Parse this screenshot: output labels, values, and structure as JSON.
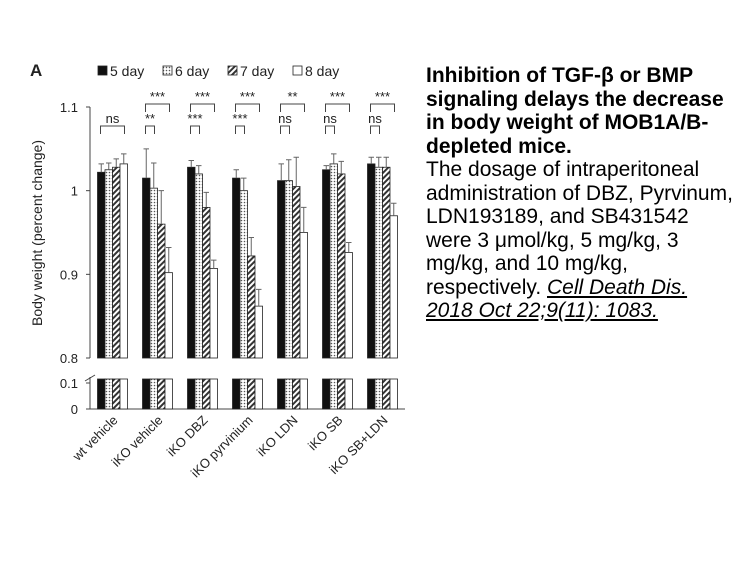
{
  "panel_label": "A",
  "chart_data": {
    "type": "bar",
    "y_label": "Body weight (percent change)",
    "categories": [
      "wt vehicle",
      "iKO vehicle",
      "iKO DBZ",
      "iKO pyrvinium",
      "iKO LDN",
      "iKO SB",
      "iKO SB+LDN"
    ],
    "series": [
      {
        "name": "5 day",
        "color": "#111111",
        "pattern": "solid",
        "values": [
          1.022,
          1.015,
          1.028,
          1.015,
          1.012,
          1.025,
          1.032
        ],
        "errors": [
          0.01,
          0.035,
          0.008,
          0.01,
          0.02,
          0.005,
          0.008
        ]
      },
      {
        "name": "6 day",
        "color": "#d8d8d8",
        "pattern": "dots",
        "values": [
          1.025,
          1.003,
          1.02,
          1.0,
          1.012,
          1.032,
          1.028
        ],
        "errors": [
          0.008,
          0.03,
          0.01,
          0.015,
          0.025,
          0.012,
          0.012
        ]
      },
      {
        "name": "7 day",
        "color": "#666666",
        "pattern": "diagonal",
        "values": [
          1.028,
          0.96,
          0.98,
          0.922,
          1.005,
          1.02,
          1.028
        ],
        "errors": [
          0.01,
          0.04,
          0.018,
          0.022,
          0.035,
          0.015,
          0.012
        ]
      },
      {
        "name": "8 day",
        "color": "#ffffff",
        "pattern": "solid",
        "values": [
          1.032,
          0.902,
          0.907,
          0.862,
          0.95,
          0.926,
          0.97
        ],
        "errors": [
          0.012,
          0.03,
          0.01,
          0.02,
          0.03,
          0.012,
          0.015
        ]
      }
    ],
    "ylim": [
      0.8,
      1.1
    ],
    "yticks": [
      0.8,
      0.9,
      1,
      1.1
    ],
    "broken_axis_lower": {
      "ylim": [
        0,
        0.1
      ],
      "yticks": [
        0,
        0.1
      ]
    },
    "significance": [
      [
        "ns"
      ],
      [
        "***",
        "**"
      ],
      [
        "***",
        "***"
      ],
      [
        "***",
        "***"
      ],
      [
        "**",
        "ns"
      ],
      [
        "***",
        "ns"
      ],
      [
        "***",
        "ns"
      ]
    ]
  },
  "caption": {
    "title": "Inhibition of TGF-β or BMP signaling delays the decrease in body weight of MOB1A/B-depleted mice.",
    "body": "The dosage of intraperitoneal administration of DBZ, Pyrvinum, LDN193189, and SB431542 were 3 μmol/kg, 5 mg/kg, 3 mg/kg, and 10 mg/kg, respectively.",
    "citation": "Cell Death Dis. 2018 Oct 22;9(11): 1083."
  }
}
